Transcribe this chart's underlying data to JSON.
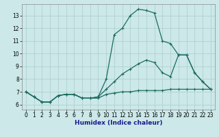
{
  "xlabel": "Humidex (Indice chaleur)",
  "background_color": "#cce8e8",
  "grid_color": "#aacccc",
  "line_color": "#1a6b5e",
  "xlim": [
    -0.5,
    23.5
  ],
  "ylim": [
    5.6,
    13.9
  ],
  "xticks": [
    0,
    1,
    2,
    3,
    4,
    5,
    6,
    7,
    8,
    9,
    10,
    11,
    12,
    13,
    14,
    15,
    16,
    17,
    18,
    19,
    20,
    21,
    22,
    23
  ],
  "yticks": [
    6,
    7,
    8,
    9,
    10,
    11,
    12,
    13
  ],
  "series1_x": [
    0,
    1,
    2,
    3,
    4,
    5,
    6,
    7,
    8,
    9,
    10,
    11,
    12,
    13,
    14,
    15,
    16,
    17,
    18,
    19,
    20,
    21,
    22,
    23
  ],
  "series1_y": [
    7.0,
    6.6,
    6.2,
    6.2,
    6.7,
    6.8,
    6.8,
    6.5,
    6.5,
    6.5,
    6.8,
    6.9,
    7.0,
    7.0,
    7.1,
    7.1,
    7.1,
    7.1,
    7.2,
    7.2,
    7.2,
    7.2,
    7.2,
    7.2
  ],
  "series2_x": [
    0,
    1,
    2,
    3,
    4,
    5,
    6,
    7,
    8,
    9,
    10,
    11,
    12,
    13,
    14,
    15,
    16,
    17,
    18,
    19,
    20,
    21,
    22,
    23
  ],
  "series2_y": [
    7.0,
    6.6,
    6.2,
    6.2,
    6.7,
    6.8,
    6.8,
    6.5,
    6.5,
    6.6,
    7.2,
    7.8,
    8.4,
    8.8,
    9.2,
    9.5,
    9.3,
    8.5,
    8.2,
    9.9,
    9.9,
    8.5,
    7.8,
    7.2
  ],
  "series3_x": [
    0,
    1,
    2,
    3,
    4,
    5,
    6,
    7,
    8,
    9,
    10,
    11,
    12,
    13,
    14,
    15,
    16,
    17,
    18,
    19,
    20,
    21,
    22,
    23
  ],
  "series3_y": [
    7.0,
    6.6,
    6.2,
    6.2,
    6.7,
    6.8,
    6.8,
    6.5,
    6.5,
    6.6,
    8.0,
    11.5,
    12.0,
    13.0,
    13.5,
    13.4,
    13.2,
    11.0,
    10.8,
    9.9,
    9.9,
    8.5,
    7.8,
    7.2
  ]
}
